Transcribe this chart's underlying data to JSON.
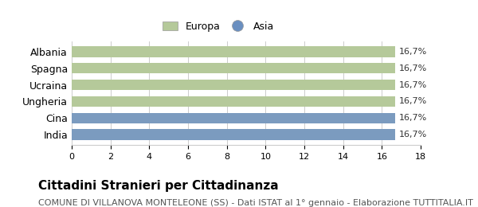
{
  "categories": [
    "Albania",
    "Spagna",
    "Ucraina",
    "Ungheria",
    "Cina",
    "India"
  ],
  "values": [
    16.7,
    16.7,
    16.7,
    16.7,
    16.7,
    16.7
  ],
  "bar_colors": [
    "#b5c99a",
    "#b5c99a",
    "#b5c99a",
    "#b5c99a",
    "#7b9bbf",
    "#7b9bbf"
  ],
  "legend_labels": [
    "Europa",
    "Asia"
  ],
  "legend_colors": [
    "#b5c99a",
    "#6a8fc0"
  ],
  "value_labels": [
    "16,7%",
    "16,7%",
    "16,7%",
    "16,7%",
    "16,7%",
    "16,7%"
  ],
  "xlim": [
    0,
    18
  ],
  "xticks": [
    0,
    2,
    4,
    6,
    8,
    10,
    12,
    14,
    16,
    18
  ],
  "title": "Cittadini Stranieri per Cittadinanza",
  "subtitle": "COMUNE DI VILLANOVA MONTELEONE (SS) - Dati ISTAT al 1° gennaio - Elaborazione TUTTITALIA.IT",
  "title_fontsize": 11,
  "subtitle_fontsize": 8,
  "background_color": "#ffffff",
  "grid_color": "#cccccc"
}
